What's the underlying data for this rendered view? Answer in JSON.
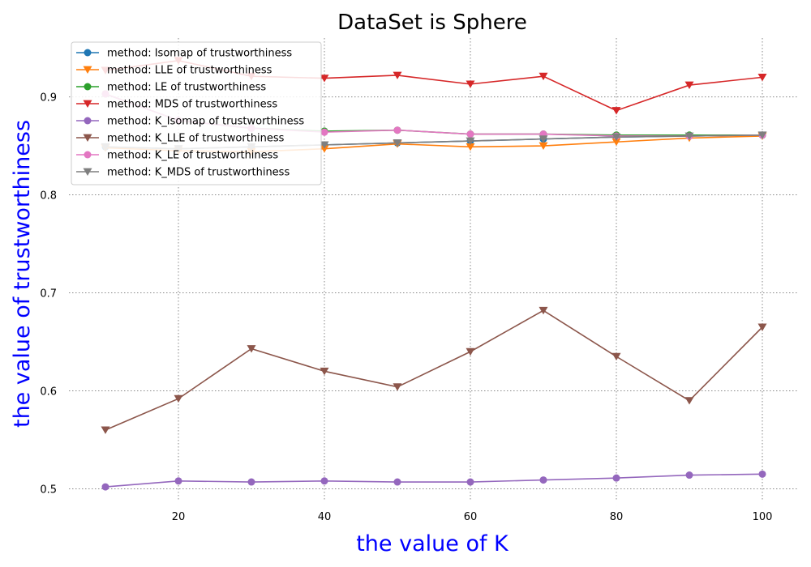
{
  "chart_data": {
    "type": "line",
    "title": "DataSet is Sphere",
    "xlabel": "the value of K",
    "ylabel": "the value of trustworthiness",
    "label_color": "#0000ff",
    "x": [
      10,
      20,
      30,
      40,
      50,
      60,
      70,
      80,
      90,
      100
    ],
    "xlim": [
      5,
      105
    ],
    "ylim": [
      0.488,
      0.96
    ],
    "x_ticks": [
      20,
      40,
      60,
      80,
      100
    ],
    "y_ticks": [
      0.5,
      0.6,
      0.7,
      0.8,
      0.9
    ],
    "x_tick_labels": [
      "20",
      "40",
      "60",
      "80",
      "100"
    ],
    "y_tick_labels": [
      "0.5",
      "0.6",
      "0.7",
      "0.8",
      "0.9"
    ],
    "grid": true,
    "legend_position": "top-left",
    "series": [
      {
        "name": "method: Isomap of trustworthiness",
        "color": "#1f77b4",
        "marker": "circle",
        "values": [
          0.849,
          0.847,
          0.849,
          0.851,
          0.853,
          0.855,
          0.857,
          0.859,
          0.86,
          0.861
        ]
      },
      {
        "name": "method: LLE of trustworthiness",
        "color": "#ff7f0e",
        "marker": "triangle-down",
        "values": [
          0.848,
          0.845,
          0.844,
          0.847,
          0.852,
          0.849,
          0.85,
          0.854,
          0.858,
          0.86
        ]
      },
      {
        "name": "method: LE of trustworthiness",
        "color": "#2ca02c",
        "marker": "circle",
        "values": [
          0.903,
          0.876,
          0.868,
          0.865,
          0.866,
          0.862,
          0.862,
          0.861,
          0.861,
          0.861
        ]
      },
      {
        "name": "method: MDS of trustworthiness",
        "color": "#d62728",
        "marker": "triangle-down",
        "values": [
          0.927,
          0.937,
          0.921,
          0.919,
          0.922,
          0.913,
          0.921,
          0.886,
          0.912,
          0.92
        ]
      },
      {
        "name": "method: K_Isomap of trustworthiness",
        "color": "#9467bd",
        "marker": "circle",
        "values": [
          0.502,
          0.508,
          0.507,
          0.508,
          0.507,
          0.507,
          0.509,
          0.511,
          0.514,
          0.515
        ]
      },
      {
        "name": "method: K_LLE of trustworthiness",
        "color": "#8c564b",
        "marker": "triangle-down",
        "values": [
          0.56,
          0.592,
          0.643,
          0.62,
          0.604,
          0.64,
          0.682,
          0.635,
          0.59,
          0.665
        ]
      },
      {
        "name": "method: K_LE of trustworthiness",
        "color": "#e377c2",
        "marker": "circle",
        "values": [
          0.903,
          0.876,
          0.868,
          0.864,
          0.866,
          0.862,
          0.862,
          0.86,
          0.86,
          0.861
        ]
      },
      {
        "name": "method: K_MDS of trustworthiness",
        "color": "#7f7f7f",
        "marker": "triangle-down",
        "values": [
          0.849,
          0.847,
          0.849,
          0.851,
          0.853,
          0.855,
          0.857,
          0.859,
          0.86,
          0.861
        ]
      }
    ]
  }
}
